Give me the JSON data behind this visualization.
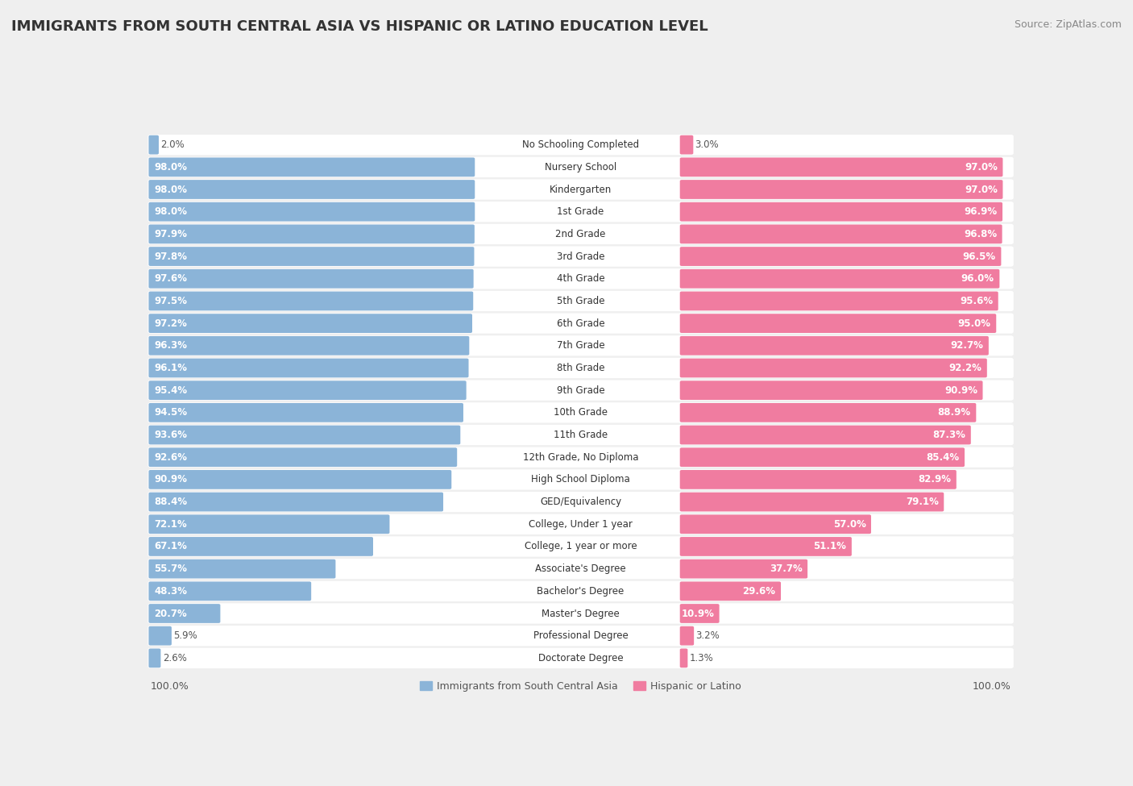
{
  "title": "IMMIGRANTS FROM SOUTH CENTRAL ASIA VS HISPANIC OR LATINO EDUCATION LEVEL",
  "source": "Source: ZipAtlas.com",
  "categories": [
    "No Schooling Completed",
    "Nursery School",
    "Kindergarten",
    "1st Grade",
    "2nd Grade",
    "3rd Grade",
    "4th Grade",
    "5th Grade",
    "6th Grade",
    "7th Grade",
    "8th Grade",
    "9th Grade",
    "10th Grade",
    "11th Grade",
    "12th Grade, No Diploma",
    "High School Diploma",
    "GED/Equivalency",
    "College, Under 1 year",
    "College, 1 year or more",
    "Associate's Degree",
    "Bachelor's Degree",
    "Master's Degree",
    "Professional Degree",
    "Doctorate Degree"
  ],
  "left_values": [
    2.0,
    98.0,
    98.0,
    98.0,
    97.9,
    97.8,
    97.6,
    97.5,
    97.2,
    96.3,
    96.1,
    95.4,
    94.5,
    93.6,
    92.6,
    90.9,
    88.4,
    72.1,
    67.1,
    55.7,
    48.3,
    20.7,
    5.9,
    2.6
  ],
  "right_values": [
    3.0,
    97.0,
    97.0,
    96.9,
    96.8,
    96.5,
    96.0,
    95.6,
    95.0,
    92.7,
    92.2,
    90.9,
    88.9,
    87.3,
    85.4,
    82.9,
    79.1,
    57.0,
    51.1,
    37.7,
    29.6,
    10.9,
    3.2,
    1.3
  ],
  "left_color": "#8bb4d8",
  "right_color": "#f07ca0",
  "background_color": "#efefef",
  "left_label": "Immigrants from South Central Asia",
  "right_label": "Hispanic or Latino",
  "title_fontsize": 13,
  "source_fontsize": 9,
  "label_fontsize": 8.5,
  "value_fontsize": 8.5,
  "footer_fontsize": 9,
  "max_val": 100.0
}
